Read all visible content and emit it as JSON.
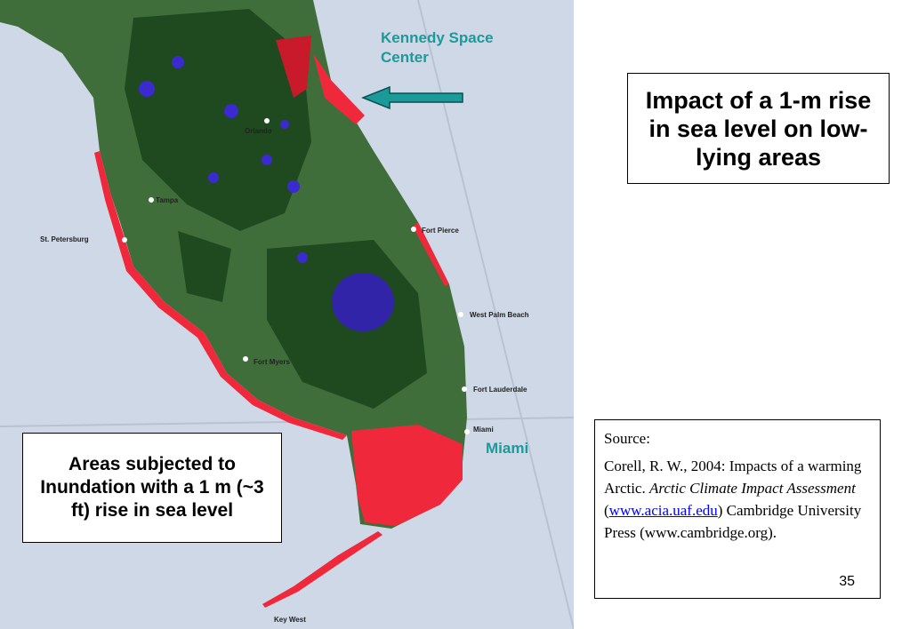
{
  "title": "Impact of a 1-m rise in sea  level on low-lying areas",
  "caption": "Areas subjected to Inundation with a 1 m (~3 ft) rise in sea level",
  "callouts": {
    "kennedy": "Kennedy Space Center",
    "miami": "Miami"
  },
  "map": {
    "labels": [
      {
        "text": "Orlando"
      },
      {
        "text": "Tampa"
      },
      {
        "text": "St. Petersburg"
      },
      {
        "text": "Fort Pierce"
      },
      {
        "text": "West Palm Beach"
      },
      {
        "text": "Fort Lauderdale"
      },
      {
        "text": "Miami"
      },
      {
        "text": "Fort Myers"
      },
      {
        "text": "Key West"
      }
    ]
  },
  "source": {
    "heading": "Source:",
    "citation": {
      "authors": "Corell, R. W., 2004:  Impacts of a warming Arctic.  ",
      "report": "Arctic Climate Impact Assessment",
      "open": " (",
      "link": "www.acia.uaf.edu",
      "rest": ") Cambridge University Press (www.cambridge.org)."
    }
  },
  "page_number": "35"
}
